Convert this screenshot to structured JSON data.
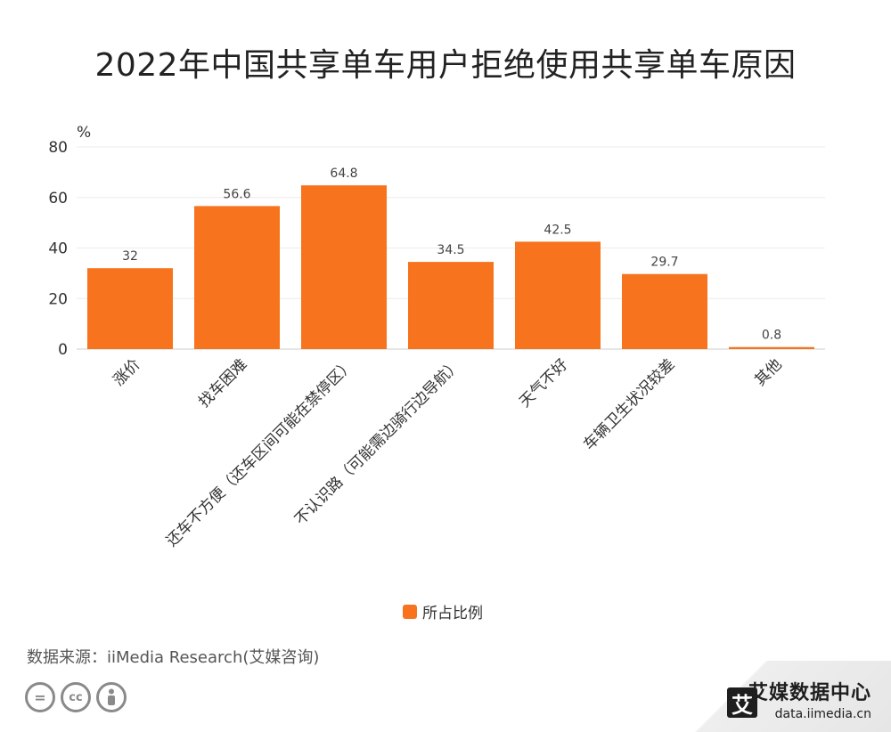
{
  "title": "2022年中国共享单车用户拒绝使用共享单车原因",
  "chart_data": {
    "type": "bar",
    "categories": [
      "涨价",
      "找车困难",
      "还车不方便（还车区间可能在禁停区）",
      "不认识路（可能需边骑行边导航）",
      "天气不好",
      "车辆卫生状况较差",
      "其他"
    ],
    "series": [
      {
        "name": "所占比例",
        "values": [
          32,
          56.6,
          64.8,
          34.5,
          42.5,
          29.7,
          0.8
        ]
      }
    ],
    "y_unit": "%",
    "ylim": [
      0,
      80
    ],
    "yticks": [
      0,
      20,
      40,
      60,
      80
    ],
    "grid": true,
    "legend_position": "bottom-center",
    "bar_color": "#f7731d"
  },
  "legend": {
    "label": "所占比例"
  },
  "source": "数据来源：iiMedia Research(艾媒咨询)",
  "brand": {
    "logo_text": "艾",
    "name": "艾媒数据中心",
    "url": "data.iimedia.cn"
  },
  "icons": [
    "equals-icon",
    "cc-icon",
    "person-icon"
  ]
}
